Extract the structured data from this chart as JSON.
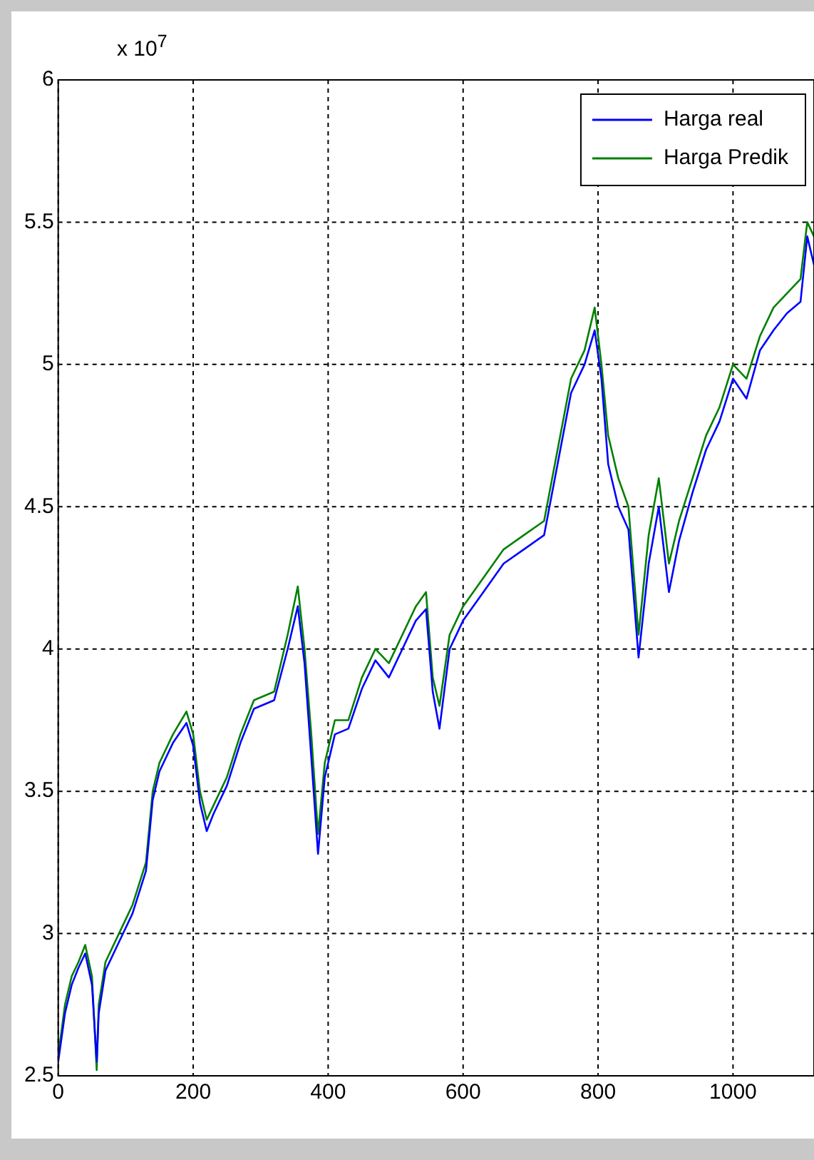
{
  "chart_data": {
    "type": "line",
    "annotations": [
      "x 10$^{7}$"
    ],
    "xlim": [
      0,
      1120
    ],
    "xticks": [
      0,
      200,
      400,
      600,
      800,
      1000
    ],
    "ylim": [
      2.5,
      6
    ],
    "yticks": [
      2.5,
      3,
      3.5,
      4,
      4.5,
      5,
      5.5,
      6
    ],
    "grid": true,
    "legend": "top right",
    "marker": "none",
    "line_style": "solid",
    "series": [
      {
        "name": "Harga real",
        "color": "#0000ff",
        "x": [
          0,
          10,
          20,
          30,
          40,
          50,
          57,
          60,
          70,
          90,
          110,
          130,
          140,
          150,
          170,
          190,
          200,
          210,
          220,
          230,
          250,
          270,
          290,
          320,
          340,
          355,
          365,
          375,
          385,
          395,
          410,
          430,
          450,
          470,
          490,
          510,
          530,
          545,
          555,
          565,
          580,
          600,
          630,
          660,
          690,
          720,
          740,
          760,
          780,
          795,
          805,
          815,
          830,
          845,
          860,
          875,
          890,
          905,
          920,
          940,
          960,
          980,
          1000,
          1020,
          1040,
          1060,
          1080,
          1100,
          1110,
          1120
        ],
        "values": [
          2.55,
          2.72,
          2.82,
          2.88,
          2.93,
          2.82,
          2.55,
          2.72,
          2.87,
          2.97,
          3.07,
          3.22,
          3.47,
          3.57,
          3.67,
          3.74,
          3.66,
          3.46,
          3.36,
          3.42,
          3.52,
          3.67,
          3.79,
          3.82,
          4.0,
          4.15,
          3.95,
          3.62,
          3.28,
          3.55,
          3.7,
          3.72,
          3.86,
          3.96,
          3.9,
          4.0,
          4.1,
          4.14,
          3.85,
          3.72,
          4.0,
          4.1,
          4.2,
          4.3,
          4.35,
          4.4,
          4.65,
          4.9,
          5.0,
          5.12,
          4.95,
          4.65,
          4.5,
          4.42,
          3.97,
          4.3,
          4.5,
          4.2,
          4.38,
          4.55,
          4.7,
          4.8,
          4.95,
          4.88,
          5.05,
          5.12,
          5.18,
          5.22,
          5.45,
          5.35
        ]
      },
      {
        "name": "Harga Predik",
        "color": "#008000",
        "x": [
          0,
          10,
          20,
          30,
          40,
          50,
          57,
          60,
          70,
          90,
          110,
          130,
          140,
          150,
          170,
          190,
          200,
          210,
          220,
          230,
          250,
          270,
          290,
          320,
          340,
          355,
          365,
          375,
          385,
          395,
          410,
          430,
          450,
          470,
          490,
          510,
          530,
          545,
          555,
          565,
          580,
          600,
          630,
          660,
          690,
          720,
          740,
          760,
          780,
          795,
          805,
          815,
          830,
          845,
          860,
          875,
          890,
          905,
          920,
          940,
          960,
          980,
          1000,
          1020,
          1040,
          1060,
          1080,
          1100,
          1110,
          1120
        ],
        "values": [
          2.57,
          2.75,
          2.85,
          2.9,
          2.96,
          2.85,
          2.52,
          2.75,
          2.9,
          3.0,
          3.1,
          3.25,
          3.5,
          3.6,
          3.7,
          3.78,
          3.7,
          3.5,
          3.4,
          3.45,
          3.55,
          3.7,
          3.82,
          3.85,
          4.05,
          4.22,
          4.0,
          3.7,
          3.35,
          3.6,
          3.75,
          3.75,
          3.9,
          4.0,
          3.95,
          4.05,
          4.15,
          4.2,
          3.9,
          3.8,
          4.05,
          4.15,
          4.25,
          4.35,
          4.4,
          4.45,
          4.7,
          4.95,
          5.05,
          5.2,
          5.0,
          4.75,
          4.6,
          4.5,
          4.05,
          4.4,
          4.6,
          4.3,
          4.45,
          4.6,
          4.75,
          4.85,
          5.0,
          4.95,
          5.1,
          5.2,
          5.25,
          5.3,
          5.5,
          5.45
        ]
      }
    ]
  }
}
